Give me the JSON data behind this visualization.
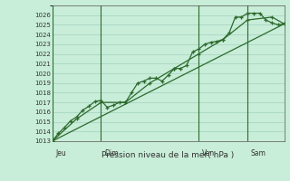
{
  "background_color": "#c8edd8",
  "grid_color": "#99ccbb",
  "line_color": "#2d6a2d",
  "marker_color": "#2d6a2d",
  "xlabel": "Pression niveau de la mer( hPa )",
  "ylim": [
    1013,
    1027
  ],
  "yticks": [
    1013,
    1014,
    1015,
    1016,
    1017,
    1018,
    1019,
    1020,
    1021,
    1022,
    1023,
    1024,
    1025,
    1026
  ],
  "day_labels": [
    "Jeu",
    "Dim",
    "Ven",
    "Sam"
  ],
  "day_positions": [
    0,
    48,
    144,
    192
  ],
  "total_hours": 228,
  "series1": [
    [
      0,
      1013.0
    ],
    [
      6,
      1013.8
    ],
    [
      12,
      1014.4
    ],
    [
      18,
      1015.1
    ],
    [
      24,
      1015.5
    ],
    [
      30,
      1016.2
    ],
    [
      36,
      1016.6
    ],
    [
      42,
      1017.1
    ],
    [
      48,
      1017.2
    ],
    [
      54,
      1016.5
    ],
    [
      60,
      1016.7
    ],
    [
      66,
      1017.0
    ],
    [
      72,
      1017.0
    ],
    [
      78,
      1018.0
    ],
    [
      84,
      1019.0
    ],
    [
      90,
      1019.2
    ],
    [
      96,
      1019.5
    ],
    [
      102,
      1019.5
    ],
    [
      108,
      1019.2
    ],
    [
      114,
      1019.8
    ],
    [
      120,
      1020.5
    ],
    [
      126,
      1020.5
    ],
    [
      132,
      1020.8
    ],
    [
      138,
      1022.2
    ],
    [
      144,
      1022.5
    ],
    [
      150,
      1023.0
    ],
    [
      156,
      1023.2
    ],
    [
      162,
      1023.3
    ],
    [
      168,
      1023.5
    ],
    [
      174,
      1024.2
    ],
    [
      180,
      1025.8
    ],
    [
      186,
      1025.8
    ],
    [
      192,
      1026.2
    ],
    [
      198,
      1026.2
    ],
    [
      204,
      1026.2
    ],
    [
      210,
      1025.5
    ],
    [
      216,
      1025.2
    ],
    [
      222,
      1025.0
    ],
    [
      228,
      1025.1
    ]
  ],
  "series2": [
    [
      0,
      1013.0
    ],
    [
      24,
      1015.3
    ],
    [
      48,
      1017.0
    ],
    [
      72,
      1017.0
    ],
    [
      96,
      1019.0
    ],
    [
      120,
      1020.5
    ],
    [
      144,
      1022.0
    ],
    [
      168,
      1023.5
    ],
    [
      192,
      1025.5
    ],
    [
      216,
      1025.8
    ],
    [
      228,
      1025.1
    ]
  ],
  "series3": [
    [
      0,
      1013.0
    ],
    [
      228,
      1025.1
    ]
  ]
}
